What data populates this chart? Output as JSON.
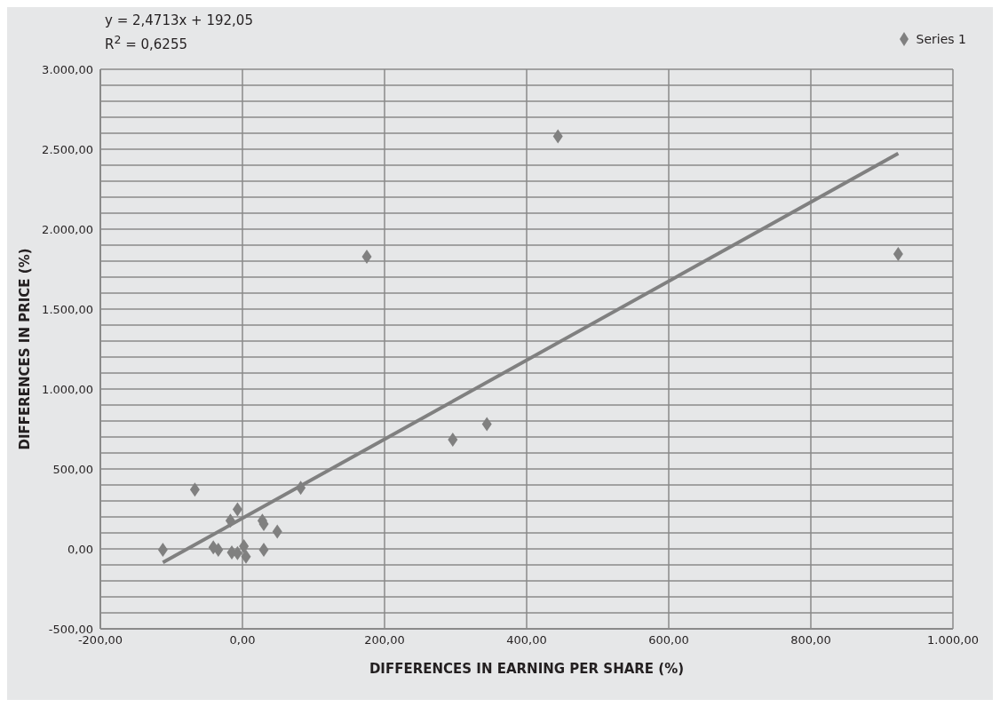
{
  "chart_data": {
    "type": "scatter",
    "xlabel": "DIFFERENCES IN EARNING PER SHARE (%)",
    "ylabel": "DIFFERENCES IN PRICE (%)",
    "annotations": [
      "y = 2,4713x + 192,05",
      "R$^{2}$ = 0,6255"
    ],
    "series": [
      {
        "name": "Series 1",
        "color": "#808080",
        "marker": "diamond",
        "x": [
          -112,
          -67,
          -41,
          -34,
          -17,
          -7,
          -15,
          -7,
          2,
          5,
          28,
          30,
          30,
          49,
          82,
          175,
          296,
          344,
          444,
          923
        ],
        "values": [
          -5,
          371,
          10,
          -5,
          177,
          247,
          -22,
          -27,
          16,
          -48,
          177,
          156,
          -5,
          108,
          382,
          1828,
          683,
          780,
          2581,
          1844
        ]
      },
      {
        "type": "line",
        "color": "#808080",
        "x": [
          -112,
          923
        ],
        "values": [
          -85,
          2473
        ]
      }
    ],
    "xlim": [
      -200,
      1000
    ],
    "ylim": [
      -500,
      3000
    ],
    "xticks": [
      {
        "value": -200,
        "label": "-200,00"
      },
      {
        "value": 0,
        "label": "0,00"
      },
      {
        "value": 200,
        "label": "200,00"
      },
      {
        "value": 400,
        "label": "400,00"
      },
      {
        "value": 600,
        "label": "600,00"
      },
      {
        "value": 800,
        "label": "800,00"
      },
      {
        "value": 1000,
        "label": "1.000,00"
      }
    ],
    "yticks": [
      {
        "value": -500,
        "label": "-500,00"
      },
      {
        "value": -400,
        "label": null
      },
      {
        "value": -300,
        "label": null
      },
      {
        "value": -200,
        "label": null
      },
      {
        "value": -100,
        "label": null
      },
      {
        "value": 0,
        "label": "0,00"
      },
      {
        "value": 100,
        "label": null
      },
      {
        "value": 200,
        "label": null
      },
      {
        "value": 300,
        "label": null
      },
      {
        "value": 400,
        "label": null
      },
      {
        "value": 500,
        "label": "500,00"
      },
      {
        "value": 600,
        "label": null
      },
      {
        "value": 700,
        "label": null
      },
      {
        "value": 800,
        "label": null
      },
      {
        "value": 900,
        "label": null
      },
      {
        "value": 1000,
        "label": "1.000,00"
      },
      {
        "value": 1100,
        "label": null
      },
      {
        "value": 1200,
        "label": null
      },
      {
        "value": 1300,
        "label": null
      },
      {
        "value": 1400,
        "label": null
      },
      {
        "value": 1500,
        "label": "1.500,00"
      },
      {
        "value": 1600,
        "label": null
      },
      {
        "value": 1700,
        "label": null
      },
      {
        "value": 1800,
        "label": null
      },
      {
        "value": 1900,
        "label": null
      },
      {
        "value": 2000,
        "label": "2.000,00"
      },
      {
        "value": 2100,
        "label": null
      },
      {
        "value": 2200,
        "label": null
      },
      {
        "value": 2300,
        "label": null
      },
      {
        "value": 2400,
        "label": null
      },
      {
        "value": 2500,
        "label": "2.500,00"
      },
      {
        "value": 2600,
        "label": null
      },
      {
        "value": 2700,
        "label": null
      },
      {
        "value": 2800,
        "label": null
      },
      {
        "value": 2900,
        "label": null
      },
      {
        "value": 3000,
        "label": "3.000,00"
      }
    ],
    "grid": true,
    "legend": "top right"
  }
}
